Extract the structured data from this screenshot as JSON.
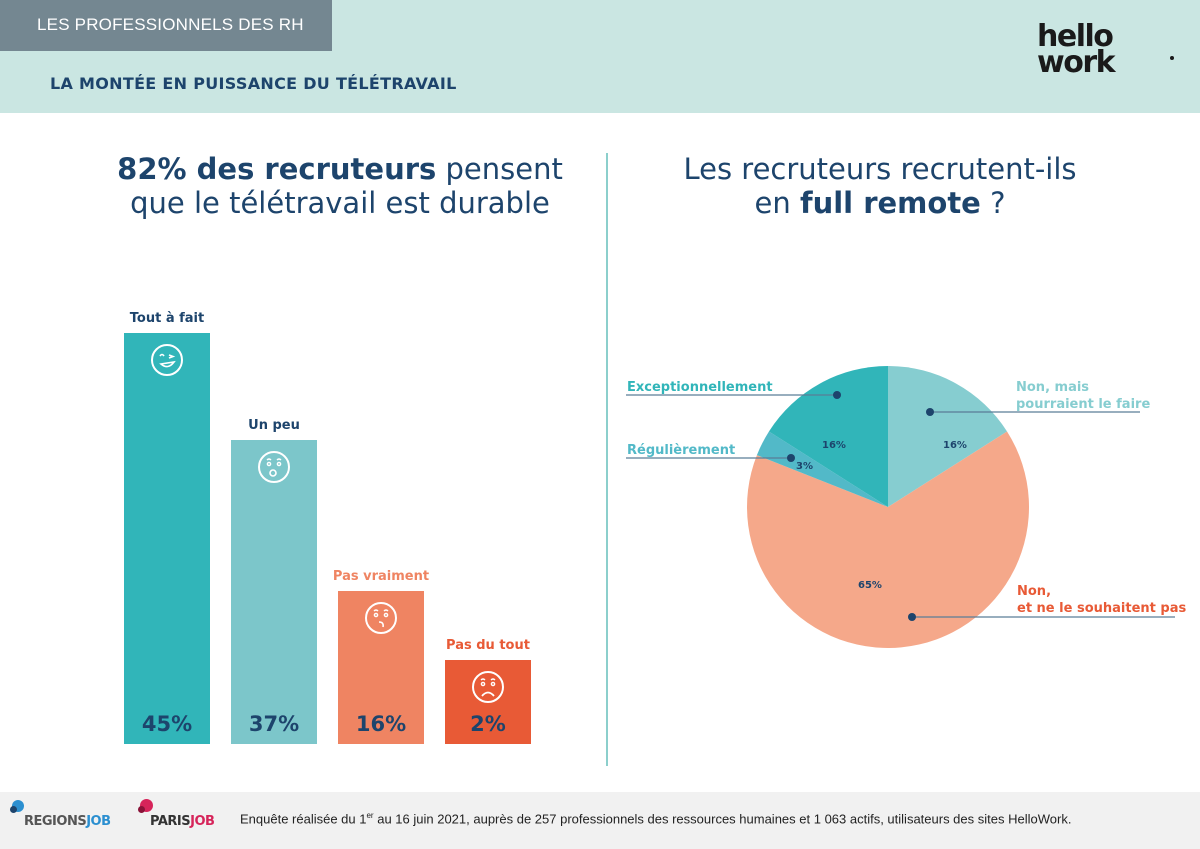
{
  "header": {
    "category": "LES PROFESSIONNELS DES RH",
    "title": "LA MONTÉE EN PUISSANCE DU TÉLÉTRAVAIL",
    "logo_line1": "hello",
    "logo_line2": "work"
  },
  "left_panel": {
    "title_bold": "82% des recruteurs",
    "title_rest1": " pensent",
    "title_line2": "que le télétravail est durable"
  },
  "right_panel": {
    "title_line1": "Les recruteurs recrutent-ils",
    "title_pre": "en ",
    "title_bold": "full remote",
    "title_post": " ?"
  },
  "chart_data": [
    {
      "type": "bar",
      "title": "82% des recruteurs pensent que le télétravail est durable",
      "categories": [
        "Tout à fait",
        "Un peu",
        "Pas vraiment",
        "Pas du tout"
      ],
      "values": [
        45,
        37,
        16,
        2
      ],
      "value_labels": [
        "45%",
        "37%",
        "16%",
        "2%"
      ],
      "icons": [
        "wink-face-icon",
        "surprised-face-icon",
        "confused-face-icon",
        "sad-face-icon"
      ],
      "colors": [
        "#31b5b9",
        "#7cc6ca",
        "#ef8462",
        "#e85a36"
      ],
      "label_colors": [
        "#1d446c",
        "#1d446c",
        "#ef8462",
        "#e85a36"
      ],
      "ylim": [
        0,
        45
      ],
      "grid": false
    },
    {
      "type": "pie",
      "title": "Les recruteurs recrutent-ils en full remote ?",
      "categories": [
        "Non, mais pourraient le faire",
        "Non, et ne le souhaitent pas",
        "Régulièrement",
        "Exceptionnellement"
      ],
      "label_lines": [
        [
          "Non, mais",
          "pourraient le faire"
        ],
        [
          "Non,",
          "et ne le souhaitent pas"
        ],
        [
          "Régulièrement"
        ],
        [
          "Exceptionnellement"
        ]
      ],
      "values": [
        16,
        65,
        3,
        16
      ],
      "value_labels": [
        "16%",
        "65%",
        "3%",
        "16%"
      ],
      "colors": [
        "#86cdd0",
        "#f5a88a",
        "#52b9c8",
        "#31b5b9"
      ],
      "label_colors": [
        "#86cdd0",
        "#e85a36",
        "#52b9c8",
        "#31b5b9"
      ],
      "start": "12 o'clock, clockwise"
    }
  ],
  "footer": {
    "brand1_a": "REGIONS",
    "brand1_b": "JOB",
    "brand2_a": "PARIS",
    "brand2_b": "JOB",
    "note_pre": "Enquête réalisée du 1",
    "note_sup": "er",
    "note_post": " au 16 juin 2021, auprès de 257 professionnels des ressources humaines et 1 063 actifs, utilisateurs des sites HelloWork."
  }
}
